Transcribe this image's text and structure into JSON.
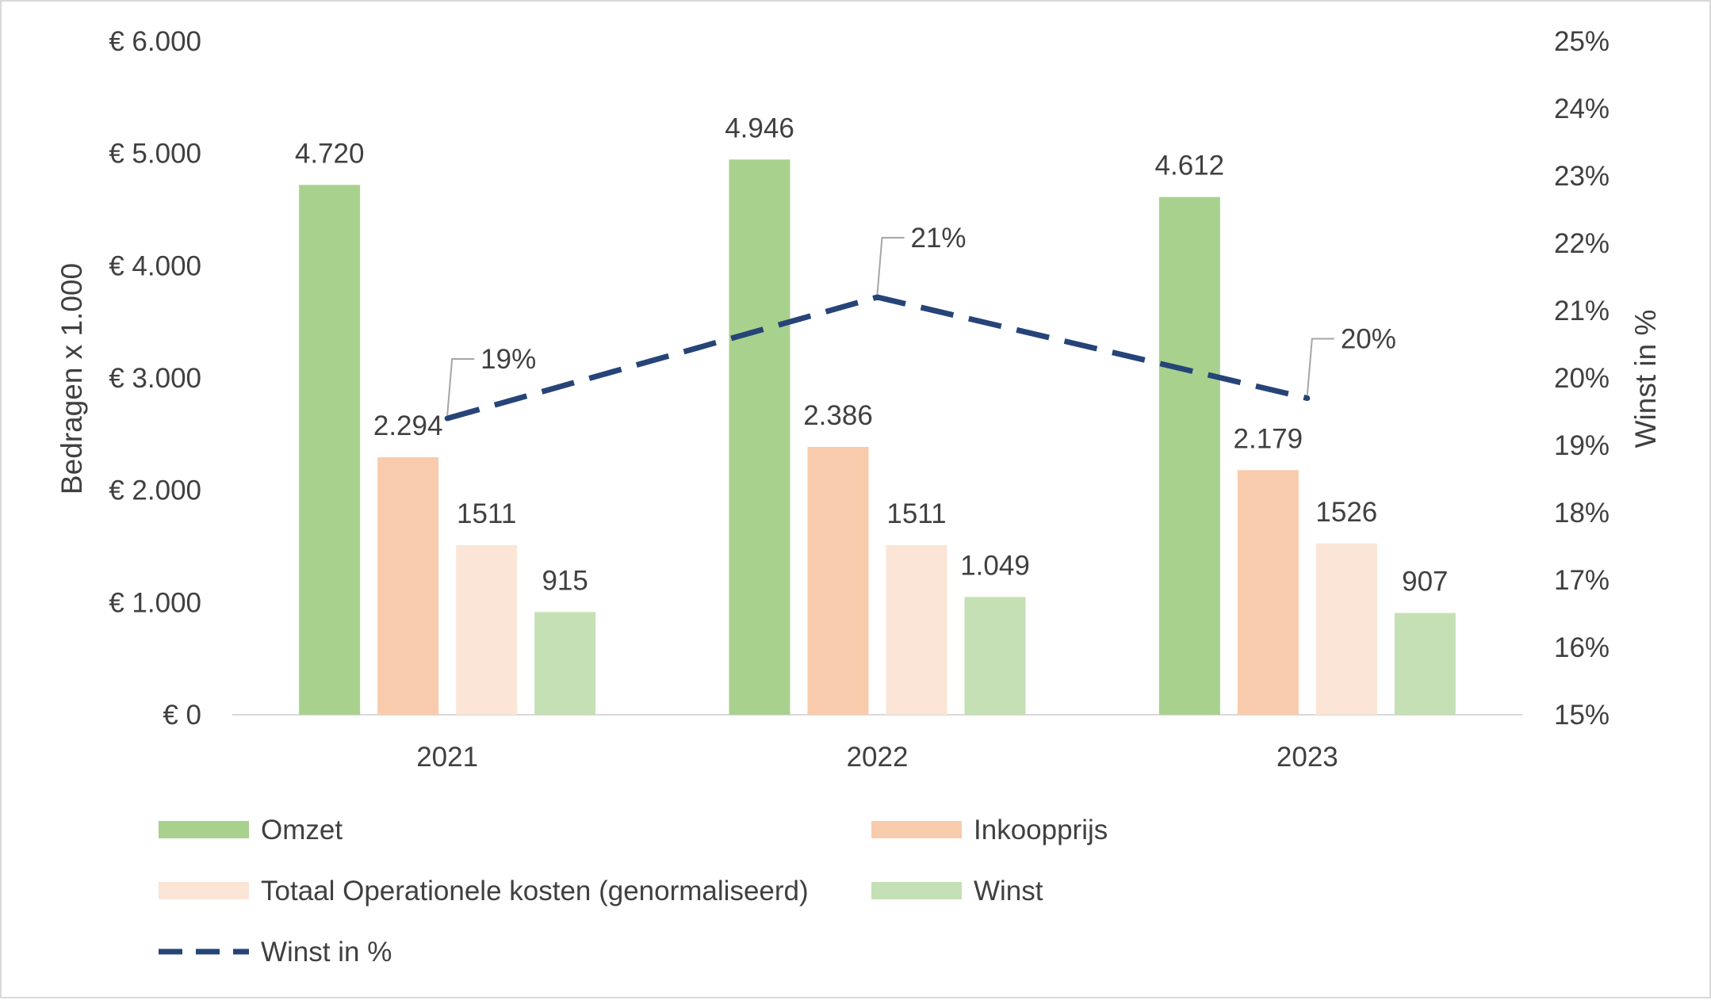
{
  "chart_data": {
    "type": "bar",
    "categories": [
      "2021",
      "2022",
      "2023"
    ],
    "series": [
      {
        "name": "Omzet",
        "values": [
          4720,
          4946,
          4612
        ],
        "labels": [
          "4.720",
          "4.946",
          "4.612"
        ],
        "color": "#a9d18e"
      },
      {
        "name": "Inkoopprijs",
        "values": [
          2294,
          2386,
          2179
        ],
        "labels": [
          "2.294",
          "2.386",
          "2.179"
        ],
        "color": "#f8cbad"
      },
      {
        "name": "Totaal Operationele kosten (genormaliseerd)",
        "values": [
          1511,
          1511,
          1526
        ],
        "labels": [
          "1511",
          "1511",
          "1526"
        ],
        "color": "#fbe5d6"
      },
      {
        "name": "Winst",
        "values": [
          915,
          1049,
          907
        ],
        "labels": [
          "915",
          "1.049",
          "907"
        ],
        "color": "#c5e0b4"
      }
    ],
    "line_series": {
      "name": "Winst in %",
      "values": [
        19.4,
        21.2,
        19.7
      ],
      "labels": [
        "19%",
        "21%",
        "20%"
      ],
      "color": "#264478",
      "style": "dashed",
      "axis": "right"
    },
    "ylabel": "Bedragen x 1.000",
    "y2label": "Winst in %",
    "ylim": [
      0,
      6000
    ],
    "y2lim": [
      15,
      25
    ],
    "y_ticks": [
      "€ 0",
      "€ 1.000",
      "€ 2.000",
      "€ 3.000",
      "€ 4.000",
      "€ 5.000",
      "€ 6.000"
    ],
    "y2_ticks": [
      "15%",
      "16%",
      "17%",
      "18%",
      "19%",
      "20%",
      "21%",
      "22%",
      "23%",
      "24%",
      "25%"
    ],
    "grid": false,
    "legend_position": "bottom"
  }
}
